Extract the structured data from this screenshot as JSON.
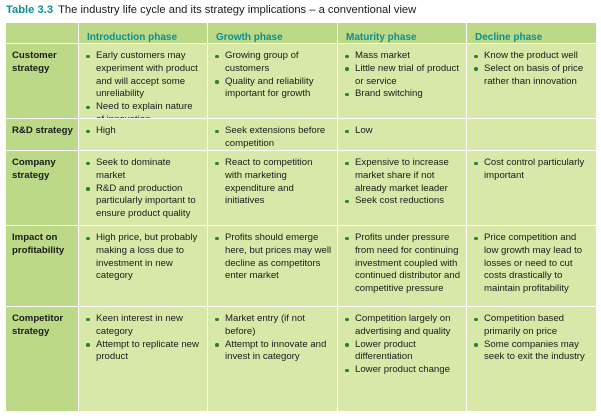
{
  "caption": {
    "number": "Table 3.3",
    "title": "The industry life cycle and its strategy implications – a conventional view"
  },
  "columns": [
    "Introduction phase",
    "Growth phase",
    "Maturity phase",
    "Decline phase"
  ],
  "rows": [
    {
      "label": "Customer strategy",
      "cells": [
        [
          "Early customers may experiment with product and will accept some unreliability",
          "Need to explain nature of innovation"
        ],
        [
          "Growing group of customers",
          "Quality and reliability important for growth"
        ],
        [
          "Mass market",
          "Little new trial of product or service",
          "Brand switching"
        ],
        [
          "Know the product well",
          "Select on basis of price rather than innovation"
        ]
      ]
    },
    {
      "label": "R&D strategy",
      "cells": [
        [
          "High"
        ],
        [
          "Seek extensions before competition"
        ],
        [
          "Low"
        ],
        []
      ]
    },
    {
      "label": "Company strategy",
      "cells": [
        [
          "Seek to dominate market",
          "R&D and production particularly important to ensure product quality"
        ],
        [
          "React to competition with marketing expenditure and initiatives"
        ],
        [
          "Expensive to increase market share if not already market leader",
          "Seek cost reductions"
        ],
        [
          "Cost control particularly important"
        ]
      ]
    },
    {
      "label": "Impact on profitability",
      "cells": [
        [
          "High price, but probably making a loss due to investment in new category"
        ],
        [
          "Profits should emerge here, but prices may well decline as competitors enter market"
        ],
        [
          "Profits under pressure from need for continuing investment coupled with continued distributor and competitive pressure"
        ],
        [
          "Price competition and low growth may lead to losses or need to cut costs drastically to maintain profitability"
        ]
      ]
    },
    {
      "label": "Competitor strategy",
      "cells": [
        [
          "Keen interest in new category",
          "Attempt to replicate new product"
        ],
        [
          "Market entry (if not before)",
          "Attempt to innovate and invest in category"
        ],
        [
          "Competition largely on advertising and quality",
          "Lower product differentiation",
          "Lower product change"
        ],
        [
          "Competition based primarily on price",
          "Some companies may seek to exit the industry"
        ]
      ]
    }
  ],
  "colors": {
    "accent": "#0b8f92",
    "header_fill": "#bcd987",
    "body_fill": "#d7e8a8",
    "bullet": "#2e7d3a"
  }
}
